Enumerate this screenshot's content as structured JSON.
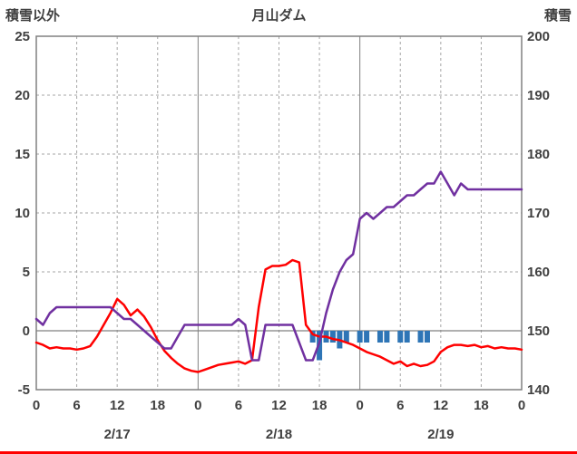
{
  "header": {
    "left_axis_title": "積雪以外",
    "chart_title": "月山ダム",
    "right_axis_title": "積雪"
  },
  "chart_data": {
    "type": "line+bar",
    "title": "月山ダム",
    "x_unit": "hour",
    "x_range": [
      0,
      72
    ],
    "left_axis": {
      "label": "積雪以外",
      "range": [
        -5,
        25
      ],
      "ticks": [
        25,
        20,
        15,
        10,
        5,
        0,
        -5
      ]
    },
    "right_axis": {
      "label": "積雪",
      "range": [
        140,
        200
      ],
      "ticks": [
        200,
        190,
        180,
        170,
        160,
        150,
        140
      ]
    },
    "x_ticks": [
      {
        "h": 0,
        "label": "0"
      },
      {
        "h": 6,
        "label": "6"
      },
      {
        "h": 12,
        "label": "12"
      },
      {
        "h": 18,
        "label": "18"
      },
      {
        "h": 24,
        "label": "0"
      },
      {
        "h": 30,
        "label": "6"
      },
      {
        "h": 36,
        "label": "12"
      },
      {
        "h": 42,
        "label": "18"
      },
      {
        "h": 48,
        "label": "0"
      },
      {
        "h": 54,
        "label": "6"
      },
      {
        "h": 60,
        "label": "12"
      },
      {
        "h": 66,
        "label": "18"
      },
      {
        "h": 72,
        "label": "0"
      }
    ],
    "date_labels": [
      {
        "h": 12,
        "label": "2/17"
      },
      {
        "h": 36,
        "label": "2/18"
      },
      {
        "h": 60,
        "label": "2/19"
      }
    ],
    "series": [
      {
        "name": "blue-bars",
        "type": "bar",
        "axis": "left",
        "color": "#2E75B6",
        "points": [
          [
            41,
            -1
          ],
          [
            42,
            -2.5
          ],
          [
            43,
            -1
          ],
          [
            44,
            -1
          ],
          [
            45,
            -1.5
          ],
          [
            46,
            -1
          ],
          [
            48,
            -1
          ],
          [
            49,
            -1
          ],
          [
            51,
            -1
          ],
          [
            52,
            -1
          ],
          [
            54,
            -1
          ],
          [
            55,
            -1
          ],
          [
            57,
            -1
          ],
          [
            58,
            -1
          ]
        ]
      },
      {
        "name": "red-line",
        "type": "line",
        "axis": "left",
        "color": "#FF0000",
        "values": [
          -1,
          -1.2,
          -1.5,
          -1.4,
          -1.5,
          -1.5,
          -1.6,
          -1.5,
          -1.3,
          -0.5,
          0.5,
          1.5,
          2.7,
          2.2,
          1.3,
          1.8,
          1.2,
          0.3,
          -0.8,
          -1.7,
          -2.3,
          -2.8,
          -3.2,
          -3.4,
          -3.5,
          -3.3,
          -3.1,
          -2.9,
          -2.8,
          -2.7,
          -2.6,
          -2.8,
          -2.5,
          2,
          5.2,
          5.5,
          5.5,
          5.6,
          6,
          5.8,
          0.5,
          -0.3,
          -0.5,
          -0.5,
          -0.7,
          -0.8,
          -1,
          -1.2,
          -1.5,
          -1.8,
          -2,
          -2.2,
          -2.5,
          -2.8,
          -2.6,
          -3,
          -2.8,
          -3,
          -2.9,
          -2.6,
          -1.8,
          -1.4,
          -1.2,
          -1.2,
          -1.3,
          -1.2,
          -1.4,
          -1.3,
          -1.5,
          -1.4,
          -1.5,
          -1.5,
          -1.6
        ]
      },
      {
        "name": "purple-line",
        "type": "line",
        "axis": "right",
        "color": "#7030A0",
        "values": [
          152,
          151,
          153,
          154,
          154,
          154,
          154,
          154,
          154,
          154,
          154,
          154,
          153,
          152,
          152,
          151,
          150,
          149,
          148,
          147,
          147,
          149,
          151,
          151,
          151,
          151,
          151,
          151,
          151,
          151,
          152,
          151,
          145,
          145,
          151,
          151,
          151,
          151,
          151,
          148,
          145,
          145,
          148,
          153,
          157,
          160,
          162,
          163,
          169,
          170,
          169,
          170,
          171,
          171,
          172,
          173,
          173,
          174,
          175,
          175,
          177,
          175,
          173,
          175,
          174,
          174,
          174,
          174,
          174,
          174,
          174,
          174,
          174
        ]
      }
    ],
    "grid": {
      "h_dashed": true,
      "v_dashed_every_6h": true,
      "solid_day_lines": true,
      "zero_line": true
    }
  }
}
